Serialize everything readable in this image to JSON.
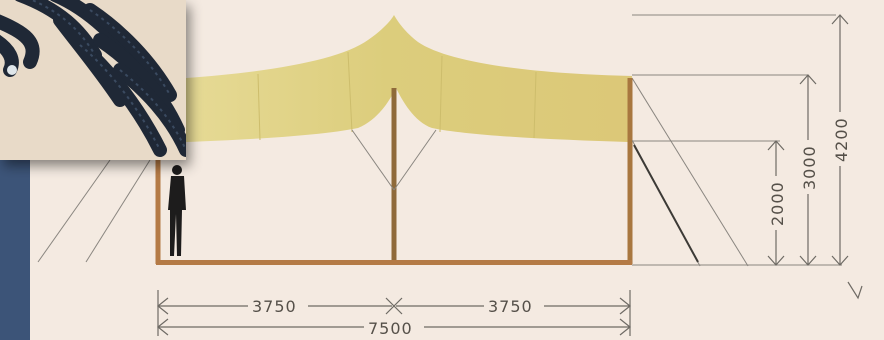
{
  "dimensions": {
    "left_span": "3750",
    "right_span": "3750",
    "total_span": "7500",
    "height_low": "2000",
    "height_mid": "3000",
    "height_total": "4200"
  },
  "colors": {
    "background": "#f4eae1",
    "fabric": "#e3d58a",
    "fabric_shadow": "#d3c06a",
    "pole": "#a8773f",
    "ground": "#b47a45",
    "side_panel": "#3c5478",
    "rope": "#1f2836",
    "line": "#6e6a64"
  },
  "icons": {
    "rope_photo": "coiled-rope-photo",
    "person": "person-silhouette-icon"
  }
}
